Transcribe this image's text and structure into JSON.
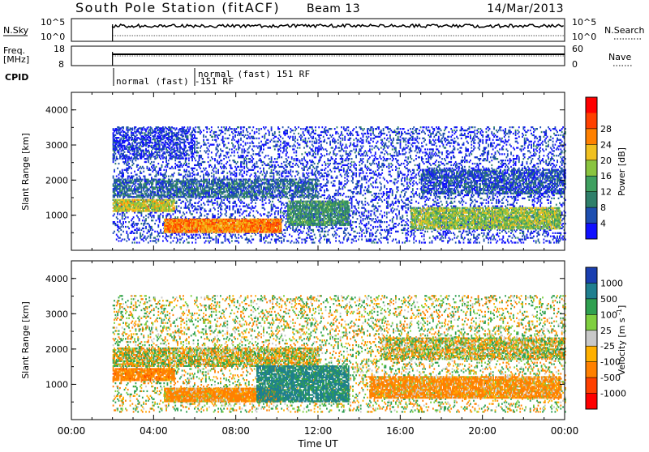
{
  "header": {
    "title": "South Pole Station (fitACF)",
    "beam": "Beam 13",
    "date": "14/Mar/2013"
  },
  "meta_panels": {
    "nsky_label": "N.Sky",
    "nsky_ticks": [
      "10^5",
      "10^0"
    ],
    "nsearch_label": "N.Search",
    "nsearch_ticks": [
      "10^5",
      "10^0"
    ],
    "freq_label_line1": "Freq.",
    "freq_label_line2": "[MHz]",
    "freq_ticks": [
      "18",
      "8"
    ],
    "nave_label": "Nave",
    "nave_ticks": [
      "60",
      "0"
    ],
    "cpid_label": "CPID",
    "cpid_entries": [
      "normal (fast) -151 RF",
      "normal (fast) 151 RF"
    ]
  },
  "chart_data": [
    {
      "type": "heatmap",
      "name": "power",
      "xlabel": "",
      "ylabel": "Slant Range [km]",
      "ylim": [
        0,
        4500
      ],
      "y_ticks": [
        "1000",
        "2000",
        "3000",
        "4000"
      ],
      "colorbar_label": "Power [dB]",
      "colorbar_ticks": [
        "4",
        "8",
        "12",
        "16",
        "20",
        "24",
        "28"
      ],
      "colorbar_colors": [
        "#1010ff",
        "#1e4fb0",
        "#2f7f6a",
        "#3fa060",
        "#8ac43f",
        "#f0c020",
        "#ff8000",
        "#ff4000",
        "#ff0000"
      ],
      "time_range_hours": [
        0,
        24
      ],
      "data_start_hour": 2.0,
      "echo_bands": [
        {
          "t0": 2.0,
          "t1": 24.0,
          "r0": 200,
          "r1": 3500,
          "density": 0.25,
          "level": 6
        },
        {
          "t0": 4.5,
          "t1": 10.2,
          "r0": 500,
          "r1": 900,
          "density": 0.95,
          "level": 28
        },
        {
          "t0": 2.0,
          "t1": 5.0,
          "r0": 1100,
          "r1": 1450,
          "density": 0.9,
          "level": 22
        },
        {
          "t0": 2.0,
          "t1": 12.0,
          "r0": 1500,
          "r1": 2000,
          "density": 0.6,
          "level": 10
        },
        {
          "t0": 10.5,
          "t1": 13.5,
          "r0": 700,
          "r1": 1400,
          "density": 0.8,
          "level": 14
        },
        {
          "t0": 16.5,
          "t1": 23.8,
          "r0": 600,
          "r1": 1200,
          "density": 0.8,
          "level": 20
        },
        {
          "t0": 17.0,
          "t1": 24.0,
          "r0": 1600,
          "r1": 2300,
          "density": 0.6,
          "level": 8
        },
        {
          "t0": 2.0,
          "t1": 6.0,
          "r0": 2600,
          "r1": 3500,
          "density": 0.4,
          "level": 6
        }
      ]
    },
    {
      "type": "heatmap",
      "name": "velocity",
      "xlabel": "Time UT",
      "ylabel": "Slant Range [km]",
      "ylim": [
        0,
        4500
      ],
      "y_ticks": [
        "1000",
        "2000",
        "3000",
        "4000"
      ],
      "x_ticks": [
        "00:00",
        "04:00",
        "08:00",
        "12:00",
        "16:00",
        "20:00",
        "00:00"
      ],
      "colorbar_label": "Velocity [m s^-1]",
      "colorbar_ticks": [
        "1000",
        "500",
        "100",
        "25",
        "-25",
        "-100",
        "-500",
        "-1000"
      ],
      "colorbar_colors": [
        "#1a3fb0",
        "#1f7f8f",
        "#2fa050",
        "#7fcf3f",
        "#c8c8c8",
        "#ffb000",
        "#ff8000",
        "#ff4000",
        "#ff0000"
      ],
      "time_range_hours": [
        0,
        24
      ],
      "data_start_hour": 2.0,
      "echo_bands": [
        {
          "t0": 2.0,
          "t1": 24.0,
          "r0": 200,
          "r1": 3500,
          "density": 0.2,
          "vel": 25
        },
        {
          "t0": 4.5,
          "t1": 10.2,
          "r0": 500,
          "r1": 900,
          "density": 0.95,
          "vel": -200
        },
        {
          "t0": 2.0,
          "t1": 5.0,
          "r0": 1100,
          "r1": 1450,
          "density": 0.85,
          "vel": -300
        },
        {
          "t0": 2.0,
          "t1": 12.0,
          "r0": 1500,
          "r1": 2000,
          "density": 0.7,
          "vel": 0
        },
        {
          "t0": 9.0,
          "t1": 13.5,
          "r0": 500,
          "r1": 1500,
          "density": 0.8,
          "vel": 600
        },
        {
          "t0": 14.5,
          "t1": 23.8,
          "r0": 600,
          "r1": 1200,
          "density": 0.85,
          "vel": -200
        },
        {
          "t0": 15.0,
          "t1": 24.0,
          "r0": 1700,
          "r1": 2300,
          "density": 0.65,
          "vel": 0
        }
      ]
    }
  ]
}
